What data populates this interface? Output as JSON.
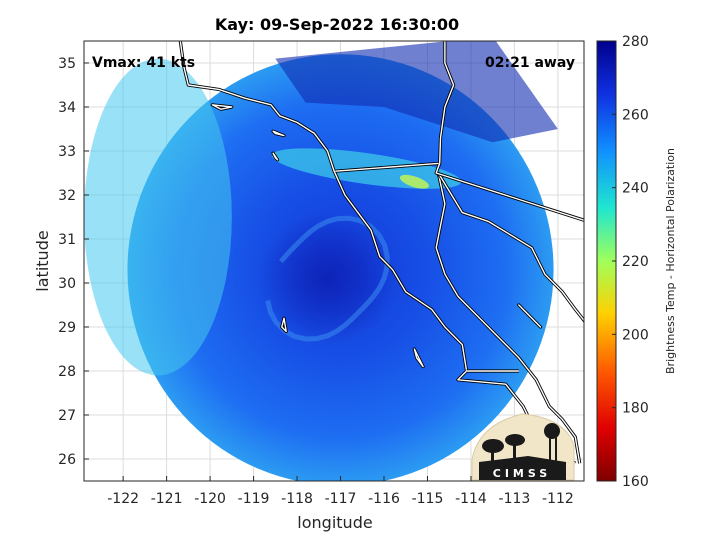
{
  "title": "Kay: 09-Sep-2022 16:30:00",
  "vmax_text": "Vmax: 41 kts",
  "time_away_text": "02:21 away",
  "xlabel": "longitude",
  "ylabel": "latitude",
  "colorbar_label": "Brightness Temp - Horizontal Polarization",
  "logo_text": "CIMSS",
  "chart_data": {
    "type": "heatmap",
    "x_ticks": [
      -122,
      -121,
      -120,
      -119,
      -118,
      -117,
      -116,
      -115,
      -114,
      -113,
      -112
    ],
    "y_ticks": [
      26,
      27,
      28,
      29,
      30,
      31,
      32,
      33,
      34,
      35
    ],
    "xlim": [
      -122.9,
      -111.4
    ],
    "ylim": [
      25.5,
      35.5
    ],
    "colorbar": {
      "min": 160,
      "max": 280,
      "ticks": [
        160,
        180,
        200,
        220,
        240,
        260,
        280
      ]
    },
    "swath": {
      "center_lon": -117.0,
      "center_lat": 30.3,
      "radius_deg": 4.9
    },
    "features": [
      {
        "name": "storm eye",
        "lon": -117.3,
        "lat": 30.1,
        "value": 262
      },
      {
        "name": "warm band",
        "lon": -115.3,
        "lat": 32.3,
        "value": 218
      },
      {
        "name": "offshore coastal region",
        "lon": -121.2,
        "lat": 31.5,
        "value": 242
      }
    ]
  }
}
